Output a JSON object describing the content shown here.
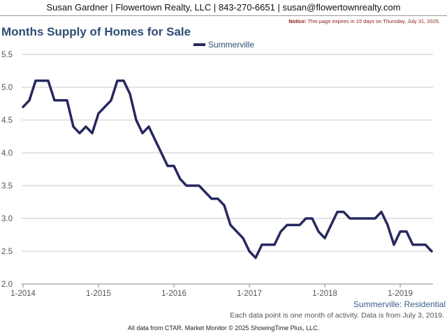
{
  "header": {
    "contact": "Susan Gardner | Flowertown Realty, LLC | 843-270-6651 | susan@flowertownrealty.com"
  },
  "notice": {
    "label": "Notice:",
    "text": "This page expires in 15 days on Thursday, July 31, 2025."
  },
  "page_title": "Months Supply of Homes for Sale",
  "region_caption": "Summerville: Residential",
  "data_note": "Each data point is one month of activity. Data is from July 3, 2019.",
  "footer": "All data from CTAR. Market Monitor © 2025 ShowingTime Plus, LLC.",
  "chart_data": {
    "type": "line",
    "title": "Months Supply of Homes for Sale",
    "xlabel": "",
    "ylabel": "",
    "ylim": [
      2.0,
      5.5
    ],
    "yticks": [
      "2.0",
      "2.5",
      "3.0",
      "3.5",
      "4.0",
      "4.5",
      "5.0",
      "5.5"
    ],
    "xticks": [
      "1-2014",
      "1-2015",
      "1-2016",
      "1-2017",
      "1-2018",
      "1-2019"
    ],
    "grid": "horizontal",
    "legend": "top-center",
    "color": "#26285f",
    "series": [
      {
        "name": "Summerville",
        "start": "2014-01",
        "values": [
          4.7,
          4.8,
          5.1,
          5.1,
          5.1,
          4.8,
          4.8,
          4.8,
          4.4,
          4.3,
          4.4,
          4.3,
          4.6,
          4.7,
          4.8,
          5.1,
          5.1,
          4.9,
          4.5,
          4.3,
          4.4,
          4.2,
          4.0,
          3.8,
          3.8,
          3.6,
          3.5,
          3.5,
          3.5,
          3.4,
          3.3,
          3.3,
          3.2,
          2.9,
          2.8,
          2.7,
          2.5,
          2.4,
          2.6,
          2.6,
          2.6,
          2.8,
          2.9,
          2.9,
          2.9,
          3.0,
          3.0,
          2.8,
          2.7,
          2.9,
          3.1,
          3.1,
          3.0,
          3.0,
          3.0,
          3.0,
          3.0,
          3.1,
          2.9,
          2.6,
          2.8,
          2.8,
          2.6,
          2.6,
          2.6,
          2.5
        ]
      }
    ]
  }
}
